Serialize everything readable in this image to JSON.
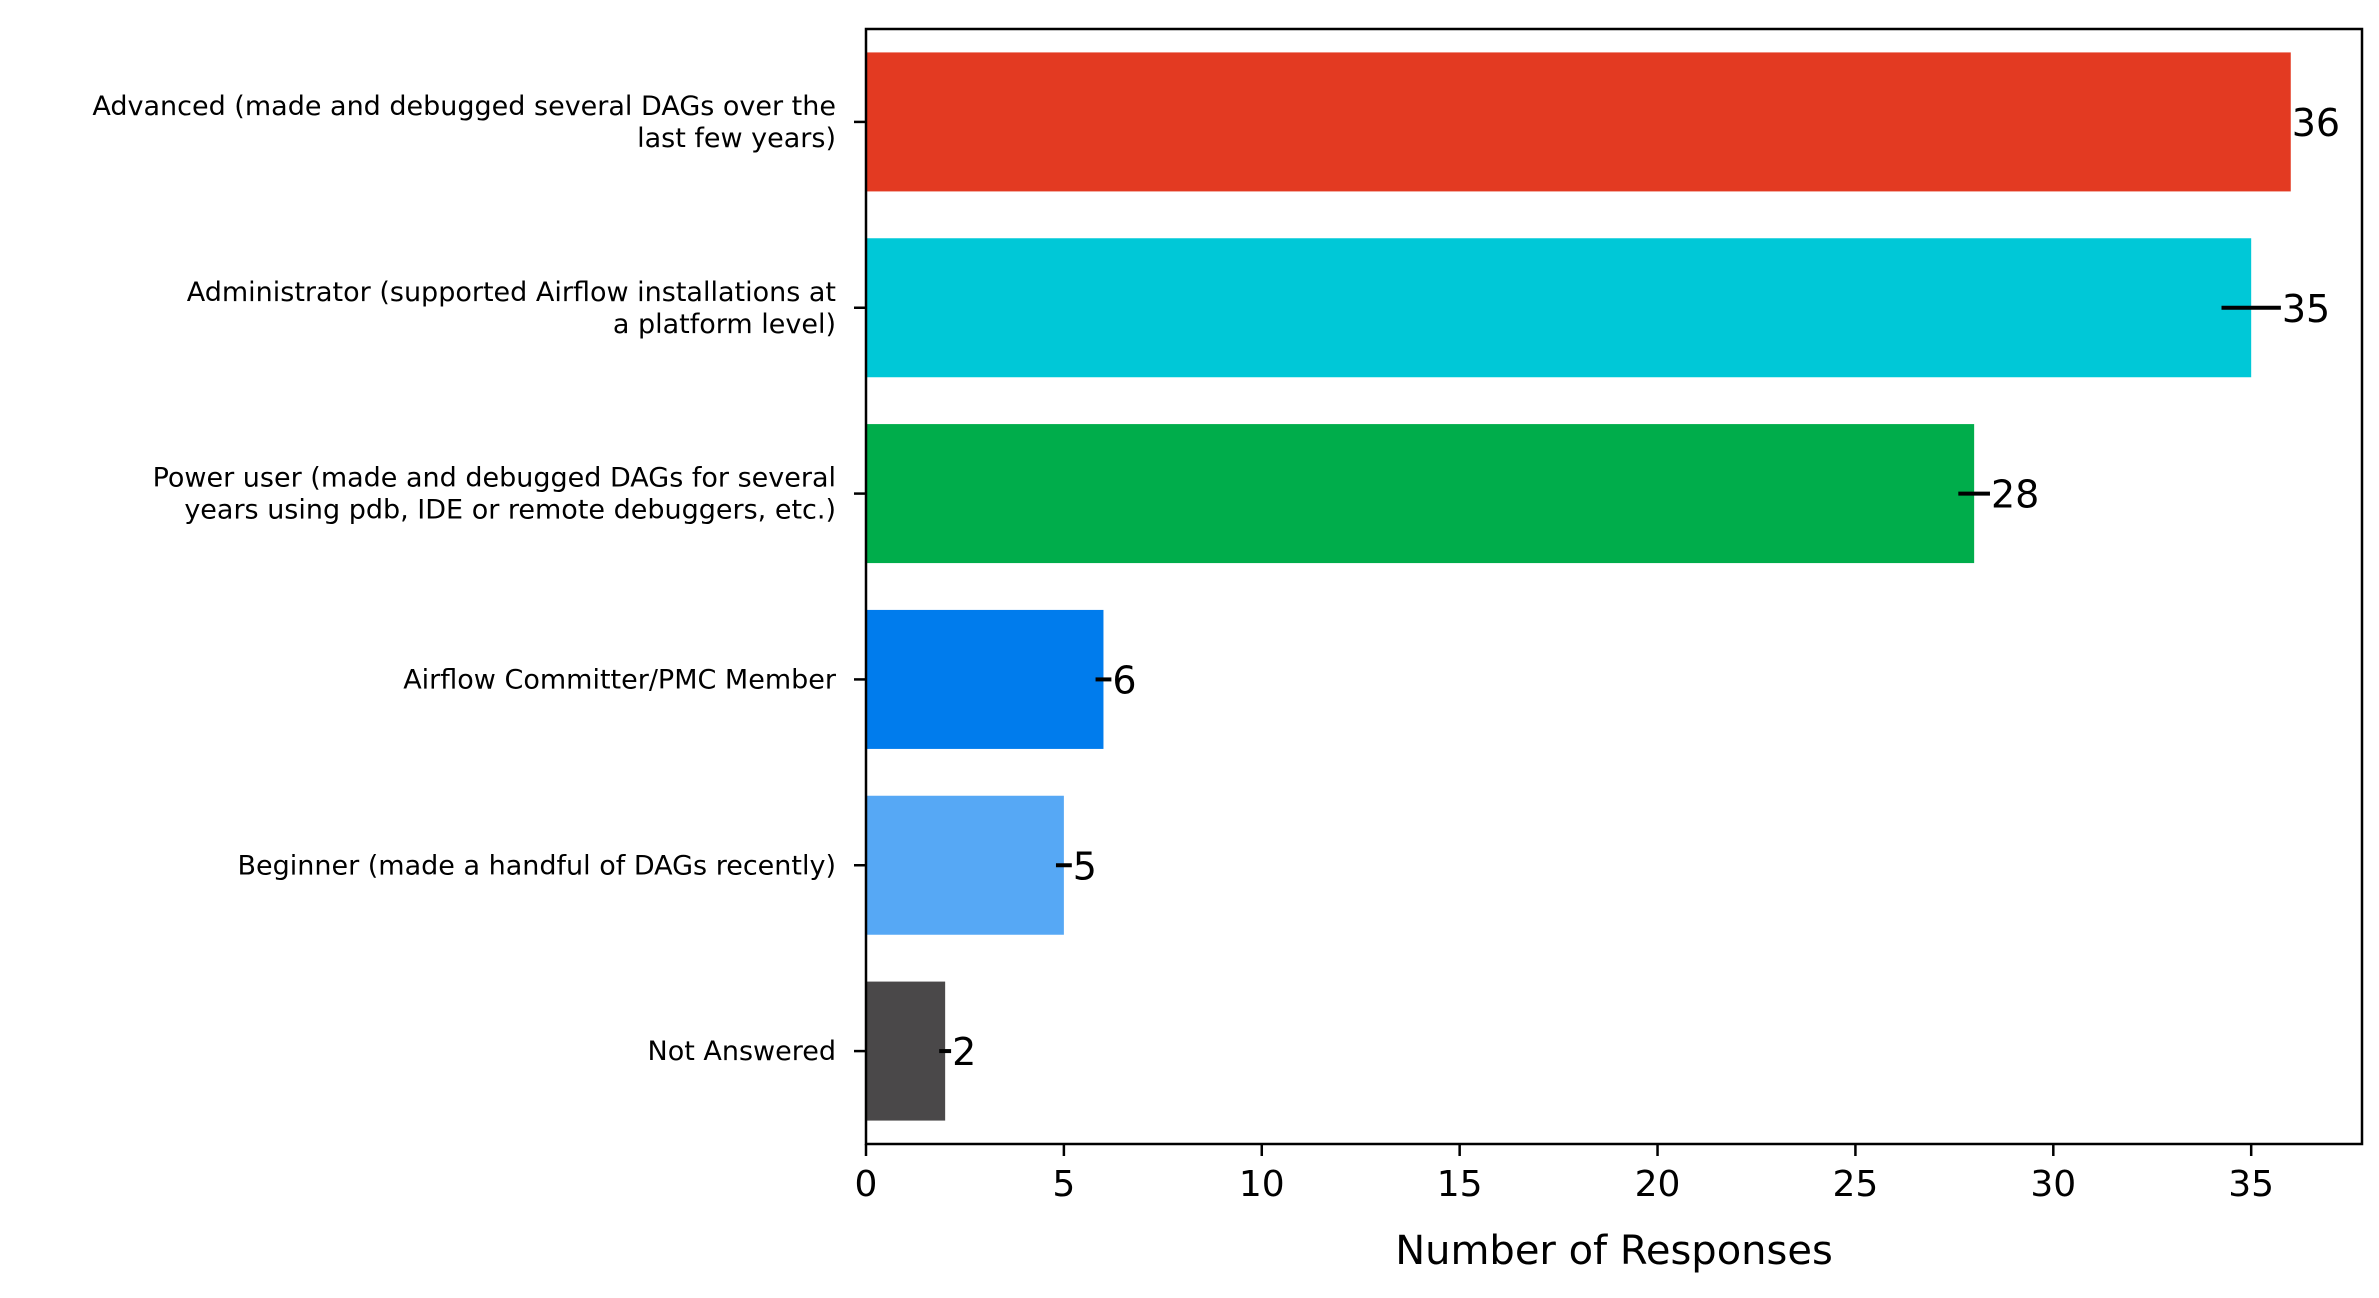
{
  "chart_data": {
    "type": "bar",
    "orientation": "horizontal",
    "categories": [
      [
        "Advanced (made and debugged several DAGs over the",
        "last few years)"
      ],
      [
        "Administrator (supported Airflow installations at",
        "a platform level)"
      ],
      [
        "Power user (made and debugged DAGs for several",
        "years using pdb, IDE or remote debuggers, etc.)"
      ],
      [
        "Airflow Committer/PMC Member"
      ],
      [
        "Beginner (made a handful of DAGs recently)"
      ],
      [
        "Not Answered"
      ]
    ],
    "values": [
      36,
      35,
      28,
      6,
      5,
      2
    ],
    "value_labels": [
      "36",
      "35",
      "28",
      "6",
      "5",
      "2"
    ],
    "error": [
      0,
      0.75,
      0.4,
      0.2,
      0.2,
      0.15
    ],
    "colors": [
      "#e33a22",
      "#00c8d7",
      "#00ad4b",
      "#007ced",
      "#56a8f5",
      "#4a4849"
    ],
    "xlabel": "Number of Responses",
    "ylabel": "",
    "title": "",
    "xlim": [
      0,
      37.8
    ],
    "xticks": [
      0,
      5,
      10,
      15,
      20,
      25,
      30,
      35
    ],
    "xtick_labels": [
      "0",
      "5",
      "10",
      "15",
      "20",
      "25",
      "30",
      "35"
    ],
    "grid": false,
    "legend": "none"
  }
}
